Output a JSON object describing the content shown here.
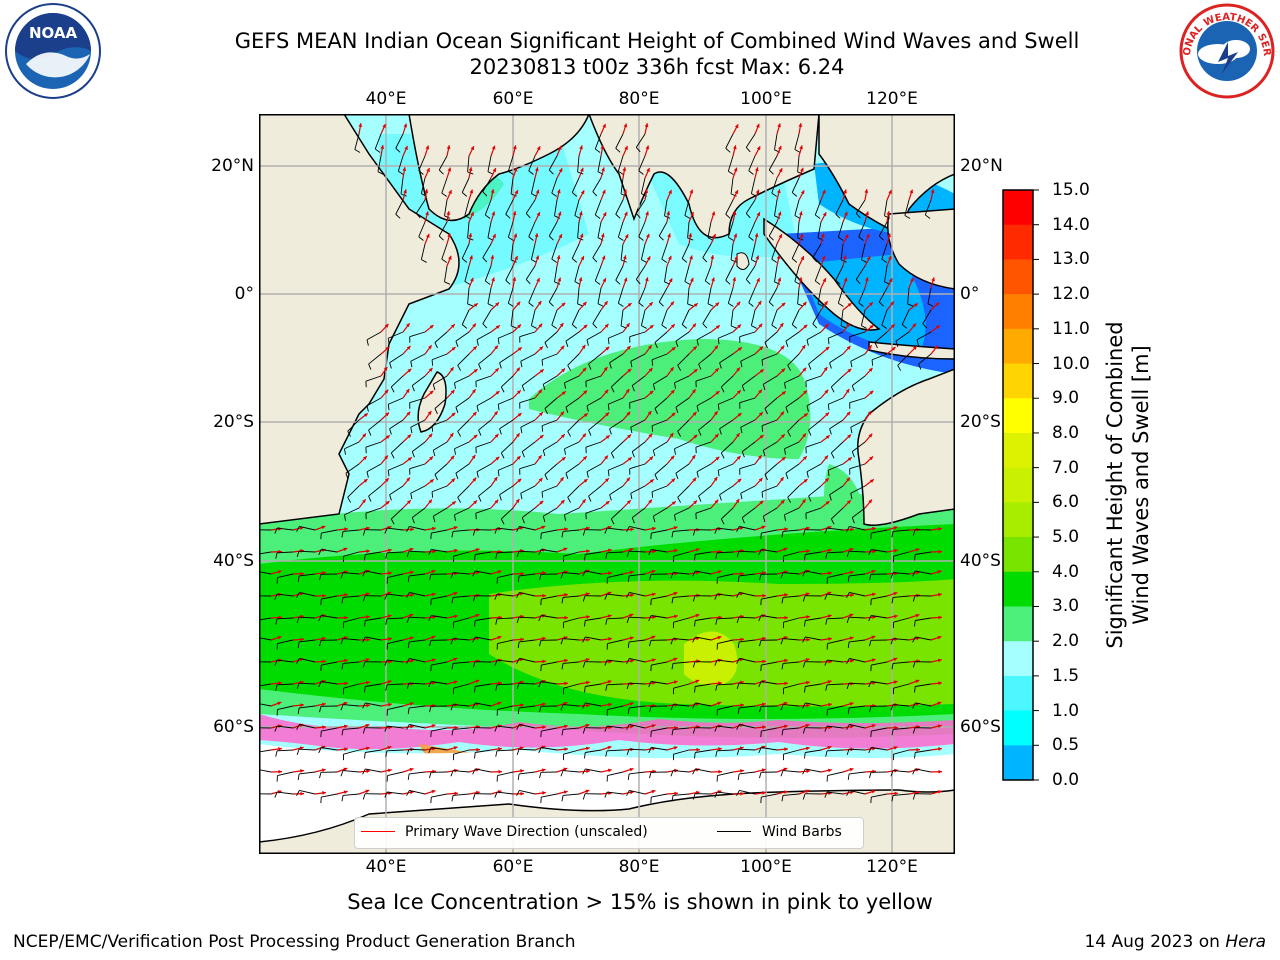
{
  "header": {
    "title_line1": "GEFS MEAN Indian Ocean Significant Height of Combined Wind Waves and Swell",
    "title_line2": "20230813 t00z 336h fcst   Max: 6.24"
  },
  "logos": {
    "left_logo_text": "NOAA",
    "right_logo_text": "NATIONAL WEATHER SERVICE"
  },
  "map": {
    "lon_ticks": [
      "40°E",
      "60°E",
      "80°E",
      "100°E",
      "120°E"
    ],
    "lat_ticks": [
      "20°N",
      "0°",
      "20°S",
      "40°S",
      "60°S"
    ]
  },
  "colorbar": {
    "title_line1": "Significant Height of Combined",
    "title_line2": "Wind Waves and Swell [m]",
    "labels": [
      "15.0",
      "14.0",
      "13.0",
      "12.0",
      "11.0",
      "10.0",
      "9.0",
      "8.0",
      "7.0",
      "6.0",
      "5.0",
      "4.0",
      "3.0",
      "2.0",
      "1.5",
      "1.0",
      "0.5",
      "0.0"
    ],
    "colors": [
      "#ff0000",
      "#ff2a00",
      "#ff5500",
      "#ff7f00",
      "#ffaa00",
      "#ffd400",
      "#ffff00",
      "#ddf200",
      "#c8f000",
      "#a8ec00",
      "#78e400",
      "#00dc00",
      "#4cef7a",
      "#a6ffff",
      "#4df7ff",
      "#00ffff",
      "#00b4ff",
      "#0064ff",
      "#0000ff"
    ]
  },
  "legend": {
    "wave_label": "Primary Wave Direction (unscaled)",
    "wind_label": "Wind Barbs",
    "wave_color": "#ff0000",
    "wind_color": "#000000"
  },
  "footer": {
    "note": "Sea Ice Concentration > 15% is shown in pink to yellow",
    "credit_left": "NCEP/EMC/Verification Post Processing Product Generation Branch",
    "credit_right_date": "14 Aug 2023 on ",
    "credit_right_host": "Hera"
  }
}
